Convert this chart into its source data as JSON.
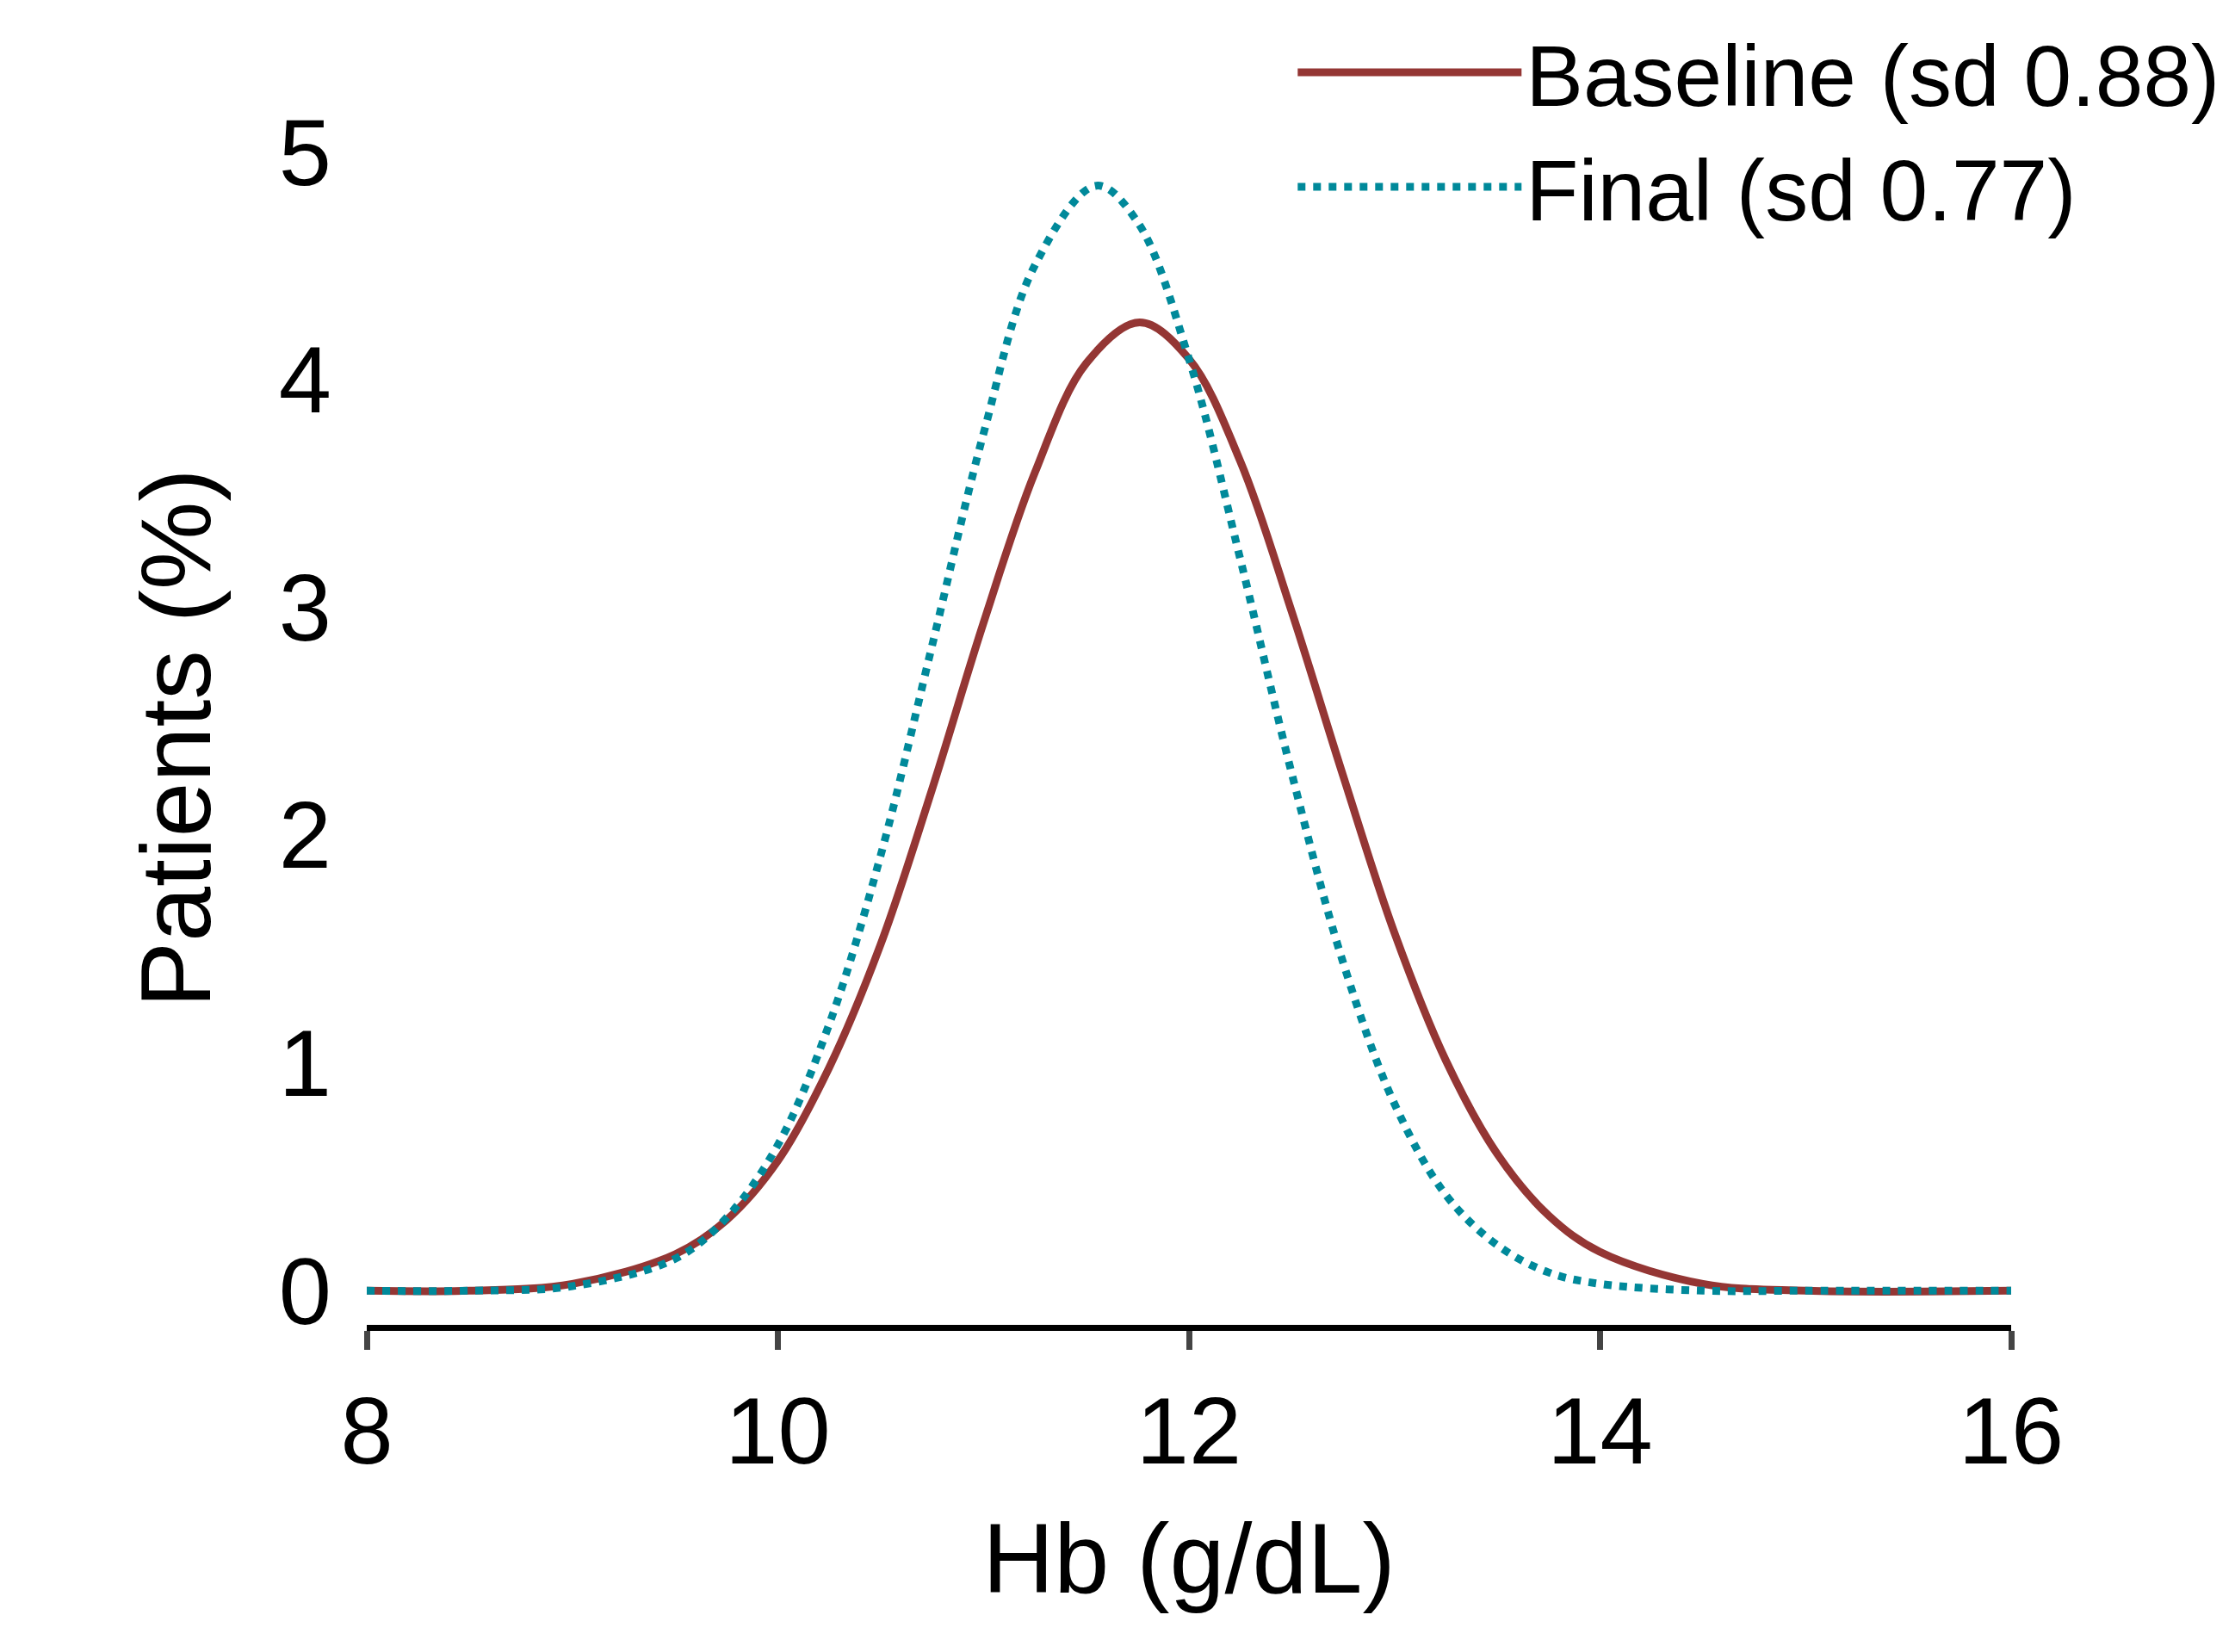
{
  "chart_data": {
    "type": "line",
    "xlabel": "Hb (g/dL)",
    "ylabel": "Patients (%)",
    "xlim": [
      8,
      16
    ],
    "xticks": [
      8,
      10,
      12,
      14,
      16
    ],
    "ylim": [
      -0.15,
      5
    ],
    "yticks": [
      0,
      1,
      2,
      3,
      4,
      5
    ],
    "legend": "top right",
    "marker": "none",
    "series": [
      {
        "name": "Baseline (sd 0.88)",
        "color": "#943634",
        "line_style": "solid",
        "x": [
          8,
          8.5,
          9,
          9.5,
          9.75,
          10,
          10.25,
          10.5,
          10.75,
          11,
          11.25,
          11.5,
          11.76,
          12,
          12.25,
          12.5,
          12.75,
          13,
          13.25,
          13.5,
          13.75,
          14,
          14.5,
          15,
          16
        ],
        "values": [
          0,
          0,
          0.03,
          0.16,
          0.31,
          0.57,
          0.98,
          1.52,
          2.2,
          2.93,
          3.59,
          4.07,
          4.25,
          4.09,
          3.64,
          2.98,
          2.26,
          1.57,
          1.01,
          0.6,
          0.33,
          0.17,
          0.03,
          0,
          0
        ]
      },
      {
        "name": "Final (sd 0.77)",
        "color": "#00899a",
        "line_style": "dotted",
        "x": [
          8,
          8.5,
          9,
          9.5,
          9.75,
          10,
          10.25,
          10.5,
          10.75,
          11,
          11.25,
          11.55,
          11.75,
          12,
          12.25,
          12.5,
          12.75,
          13,
          13.25,
          13.5,
          13.75,
          14,
          14.5,
          15,
          16
        ],
        "values": [
          0,
          0,
          0.02,
          0.14,
          0.32,
          0.64,
          1.17,
          1.91,
          2.83,
          3.76,
          4.5,
          4.85,
          4.69,
          4.09,
          3.21,
          2.27,
          1.44,
          0.82,
          0.42,
          0.2,
          0.08,
          0.03,
          0,
          0,
          0
        ]
      }
    ]
  }
}
